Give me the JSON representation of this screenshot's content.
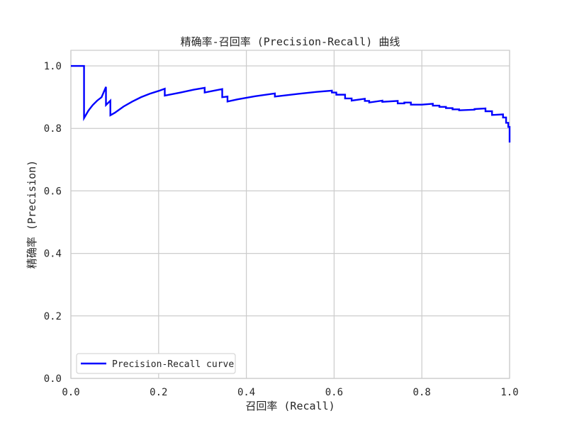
{
  "chart_data": {
    "type": "line",
    "title": "精确率-召回率 (Precision-Recall) 曲线",
    "xlabel": "召回率 (Recall)",
    "ylabel": "精确率 (Precision)",
    "xlim": [
      0.0,
      1.0
    ],
    "ylim": [
      0.0,
      1.05
    ],
    "x_ticks": [
      "0.0",
      "0.2",
      "0.4",
      "0.6",
      "0.8",
      "1.0"
    ],
    "y_ticks": [
      "0.0",
      "0.2",
      "0.4",
      "0.6",
      "0.8",
      "1.0"
    ],
    "grid": true,
    "legend_position": "lower-left",
    "series": [
      {
        "name": "Precision-Recall curve",
        "color": "#0000ff",
        "points": [
          [
            0.0,
            1.0
          ],
          [
            0.03,
            1.0
          ],
          [
            0.03,
            0.833
          ],
          [
            0.04,
            0.857
          ],
          [
            0.05,
            0.875
          ],
          [
            0.06,
            0.889
          ],
          [
            0.07,
            0.9
          ],
          [
            0.08,
            0.933
          ],
          [
            0.08,
            0.875
          ],
          [
            0.09,
            0.889
          ],
          [
            0.09,
            0.842
          ],
          [
            0.1,
            0.85
          ],
          [
            0.12,
            0.87
          ],
          [
            0.14,
            0.886
          ],
          [
            0.16,
            0.9
          ],
          [
            0.18,
            0.911
          ],
          [
            0.2,
            0.92
          ],
          [
            0.214,
            0.927
          ],
          [
            0.214,
            0.905
          ],
          [
            0.25,
            0.915
          ],
          [
            0.28,
            0.924
          ],
          [
            0.305,
            0.93
          ],
          [
            0.305,
            0.915
          ],
          [
            0.345,
            0.926
          ],
          [
            0.345,
            0.9
          ],
          [
            0.357,
            0.902
          ],
          [
            0.357,
            0.886
          ],
          [
            0.38,
            0.893
          ],
          [
            0.42,
            0.903
          ],
          [
            0.465,
            0.912
          ],
          [
            0.465,
            0.902
          ],
          [
            0.52,
            0.911
          ],
          [
            0.56,
            0.917
          ],
          [
            0.595,
            0.921
          ],
          [
            0.595,
            0.915
          ],
          [
            0.605,
            0.915
          ],
          [
            0.605,
            0.908
          ],
          [
            0.625,
            0.908
          ],
          [
            0.625,
            0.896
          ],
          [
            0.64,
            0.896
          ],
          [
            0.64,
            0.889
          ],
          [
            0.67,
            0.895
          ],
          [
            0.67,
            0.888
          ],
          [
            0.68,
            0.888
          ],
          [
            0.68,
            0.883
          ],
          [
            0.71,
            0.889
          ],
          [
            0.71,
            0.885
          ],
          [
            0.745,
            0.888
          ],
          [
            0.745,
            0.88
          ],
          [
            0.76,
            0.88
          ],
          [
            0.76,
            0.883
          ],
          [
            0.775,
            0.883
          ],
          [
            0.775,
            0.876
          ],
          [
            0.8,
            0.876
          ],
          [
            0.825,
            0.879
          ],
          [
            0.825,
            0.873
          ],
          [
            0.84,
            0.873
          ],
          [
            0.84,
            0.869
          ],
          [
            0.855,
            0.869
          ],
          [
            0.855,
            0.865
          ],
          [
            0.87,
            0.865
          ],
          [
            0.87,
            0.861
          ],
          [
            0.885,
            0.861
          ],
          [
            0.885,
            0.858
          ],
          [
            0.92,
            0.86
          ],
          [
            0.92,
            0.862
          ],
          [
            0.945,
            0.864
          ],
          [
            0.945,
            0.855
          ],
          [
            0.96,
            0.855
          ],
          [
            0.96,
            0.843
          ],
          [
            0.985,
            0.845
          ],
          [
            0.985,
            0.835
          ],
          [
            0.992,
            0.835
          ],
          [
            0.992,
            0.818
          ],
          [
            0.997,
            0.818
          ],
          [
            0.997,
            0.805
          ],
          [
            1.0,
            0.805
          ],
          [
            1.0,
            0.755
          ]
        ]
      }
    ]
  }
}
